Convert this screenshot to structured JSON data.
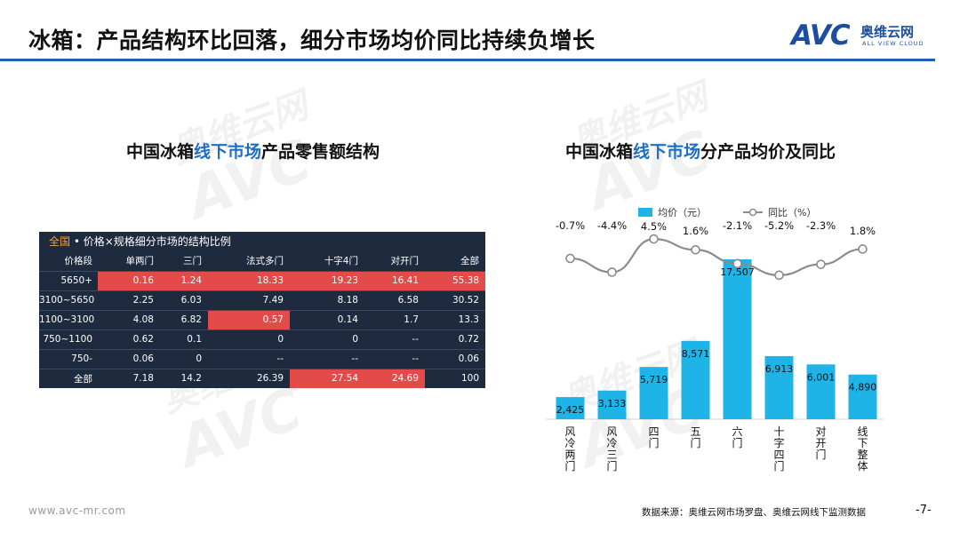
{
  "title": "冰箱：产品结构环比回落，细分市场均价同比持续负增长",
  "logo": {
    "avc": "AVC",
    "cn": "奥维云网",
    "en": "ALL VIEW CLOUD"
  },
  "watermark": {
    "cn": "奥维云网",
    "en": "ALL VIEW CLOUD",
    "avc": "AVC"
  },
  "left": {
    "title_a": "中国冰箱",
    "title_hl": "线下市场",
    "title_b": "产品零售额结构"
  },
  "right": {
    "title_a": "中国冰箱",
    "title_hl": "线下市场",
    "title_b": "分产品均价及同比"
  },
  "table": {
    "header_region": "全国",
    "header_rest": " • 价格×规格细分市场的结构比例",
    "columns": [
      "价格段",
      "单两门",
      "三门",
      "法式多门",
      "十字4门",
      "对开门",
      "全部"
    ],
    "rows": [
      [
        "5650+",
        "0.16",
        "1.24",
        "18.33",
        "19.23",
        "16.41",
        "55.38"
      ],
      [
        "3100~5650",
        "2.25",
        "6.03",
        "7.49",
        "8.18",
        "6.58",
        "30.52"
      ],
      [
        "1100~3100",
        "4.08",
        "6.82",
        "0.57",
        "0.14",
        "1.7",
        "13.3"
      ],
      [
        "750~1100",
        "0.62",
        "0.1",
        "0",
        "0",
        "--",
        "0.72"
      ],
      [
        "750-",
        "0.06",
        "0",
        "--",
        "--",
        "--",
        "0.06"
      ],
      [
        "全部",
        "7.18",
        "14.2",
        "26.39",
        "27.54",
        "24.69",
        "100"
      ]
    ],
    "highlight_color": "#e24b4a",
    "highlighted_cells": [
      [
        0,
        1
      ],
      [
        0,
        2
      ],
      [
        0,
        3
      ],
      [
        0,
        4
      ],
      [
        0,
        5
      ],
      [
        0,
        6
      ],
      [
        2,
        3
      ],
      [
        5,
        4
      ],
      [
        5,
        5
      ]
    ]
  },
  "chart_data": {
    "type": "bar",
    "categories": [
      "风冷两门",
      "风冷三门",
      "四门",
      "五门",
      "六门",
      "十字四门",
      "对开门",
      "线下整体"
    ],
    "series": [
      {
        "name": "均价（元）",
        "type": "bar",
        "color": "#1fb4e8",
        "values": [
          2425,
          3133,
          5719,
          8571,
          17507,
          6913,
          6001,
          4890
        ],
        "labels": [
          "2,425",
          "3,133",
          "5,719",
          "8,571",
          "17,507",
          "6,913",
          "6,001",
          "4,890"
        ]
      },
      {
        "name": "同比（%）",
        "type": "line",
        "color": "#8c8c8c",
        "values": [
          -0.7,
          -4.4,
          4.5,
          1.6,
          -2.1,
          -5.2,
          -2.3,
          1.8
        ],
        "labels": [
          "-0.7%",
          "-4.4%",
          "4.5%",
          "1.6%",
          "-2.1%",
          "-5.2%",
          "-2.3%",
          "1.8%"
        ]
      }
    ]
  },
  "footer": {
    "url": "www.avc-mr.com",
    "source": "数据来源：奥维云网市场罗盘、奥维云网线下监测数据",
    "page": "-7-"
  }
}
